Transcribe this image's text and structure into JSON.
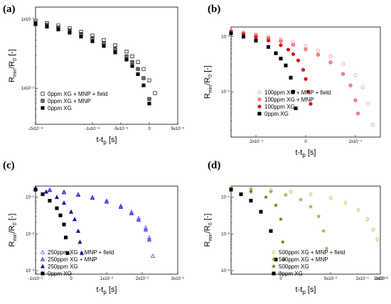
{
  "chart_data": [
    {
      "type": "scatter",
      "panel_label": "(a)",
      "xlabel": "t-t",
      "xlabel_sub": "p",
      "xlabel_unit": "[s]",
      "ylabel": "R",
      "ylabel_sub1": "min",
      "ylabel_mid": "/R",
      "ylabel_sub2": "0",
      "ylabel_unit": "[-]",
      "xlim": [
        -0.0002,
        5e-05
      ],
      "ylim": [
        0.003,
        0.15
      ],
      "yscale": "log",
      "xticks": [
        -0.0002,
        -0.0001,
        -5e-05,
        0,
        5e-05
      ],
      "xtick_labels": [
        "-2x10⁻⁴",
        "-1x10⁻⁴",
        "-5x10⁻⁵",
        "0",
        "5x10⁻⁵"
      ],
      "yticks": [
        0.1,
        0.01
      ],
      "ytick_labels": [
        "1x10⁻¹",
        "1x10⁻²"
      ],
      "legend_position": "lower-left",
      "series": [
        {
          "name": "0ppm XG + MNP + field",
          "color": "#000000",
          "marker": "square-open",
          "x": [
            -0.0002,
            -0.00018,
            -0.00016,
            -0.00014,
            -0.00012,
            -0.0001,
            -8e-05,
            -6e-05,
            -4e-05,
            -3e-05,
            -2e-05,
            -1e-05,
            0,
            1e-05
          ],
          "y": [
            0.095,
            0.088,
            0.081,
            0.074,
            0.066,
            0.058,
            0.05,
            0.042,
            0.034,
            0.029,
            0.024,
            0.019,
            0.013,
            0.0085
          ]
        },
        {
          "name": "0ppm XG + MNP",
          "color": "#000000",
          "marker": "square-half",
          "x": [
            -0.0002,
            -0.00018,
            -0.00016,
            -0.00014,
            -0.00012,
            -0.0001,
            -8e-05,
            -6e-05,
            -4e-05,
            -3e-05,
            -2e-05,
            -1e-05,
            0
          ],
          "y": [
            0.09,
            0.083,
            0.076,
            0.069,
            0.061,
            0.053,
            0.045,
            0.037,
            0.029,
            0.024,
            0.019,
            0.014,
            0.007
          ]
        },
        {
          "name": "0ppm XG",
          "color": "#000000",
          "marker": "square-filled",
          "x": [
            -0.0002,
            -0.00018,
            -0.00016,
            -0.00014,
            -0.00012,
            -0.0001,
            -8e-05,
            -6e-05,
            -4e-05,
            -3e-05,
            -2e-05,
            -1e-05,
            0
          ],
          "y": [
            0.085,
            0.078,
            0.071,
            0.064,
            0.056,
            0.048,
            0.041,
            0.033,
            0.026,
            0.021,
            0.016,
            0.011,
            0.006
          ]
        }
      ]
    },
    {
      "type": "scatter",
      "panel_label": "(b)",
      "xlabel": "t-t",
      "xlabel_sub": "p",
      "xlabel_unit": "[s]",
      "ylabel": "R",
      "ylabel_sub1": "min",
      "ylabel_mid": "/R",
      "ylabel_sub2": "0",
      "ylabel_unit": "[-]",
      "xlim": [
        -0.0003,
        0.0003
      ],
      "ylim": [
        0.0015,
        0.15
      ],
      "yscale": "log",
      "xticks": [
        -0.0002,
        0,
        0.0002
      ],
      "xtick_labels": [
        "-2x10⁻⁴",
        "0",
        "2x10⁻⁴"
      ],
      "yticks": [
        0.1,
        0.01
      ],
      "ytick_labels": [
        "10⁻¹",
        "10⁻²"
      ],
      "legend_position": "lower-right",
      "series": [
        {
          "name": "100ppm XG + MNP + field",
          "color": "#f08080",
          "marker": "circle-open",
          "x": [
            -0.0003,
            -0.00025,
            -0.0002,
            -0.00015,
            -0.0001,
            -5e-05,
            0,
            5e-05,
            0.0001,
            0.00015,
            0.0002,
            0.00023,
            0.00025,
            0.00027
          ],
          "y": [
            0.13,
            0.12,
            0.11,
            0.1,
            0.09,
            0.08,
            0.068,
            0.056,
            0.044,
            0.032,
            0.02,
            0.012,
            0.006,
            0.0025
          ]
        },
        {
          "name": "100ppm XG + MNP",
          "color": "#e83030",
          "marker": "circle-half",
          "x": [
            -0.0003,
            -0.00025,
            -0.0002,
            -0.00015,
            -0.0001,
            -5e-05,
            0,
            5e-05,
            0.0001,
            0.00015,
            0.00018,
            0.0002,
            0.00021
          ],
          "y": [
            0.125,
            0.115,
            0.105,
            0.094,
            0.083,
            0.071,
            0.059,
            0.047,
            0.034,
            0.021,
            0.013,
            0.007,
            0.004
          ]
        },
        {
          "name": "100ppm XG",
          "color": "#e00000",
          "marker": "circle-filled",
          "x": [
            -0.0003,
            -0.00025,
            -0.0002,
            -0.00015,
            -0.0001,
            -7e-05,
            -5e-05,
            -3e-05,
            -1e-05,
            0,
            1e-05,
            2e-05
          ],
          "y": [
            0.12,
            0.11,
            0.098,
            0.085,
            0.07,
            0.058,
            0.048,
            0.037,
            0.025,
            0.017,
            0.01,
            0.006
          ]
        },
        {
          "name": "0ppm XG",
          "color": "#000000",
          "marker": "square-filled",
          "x": [
            -0.0003,
            -0.00025,
            -0.0002,
            -0.00015,
            -0.00012,
            -0.0001,
            -8e-05,
            -6e-05,
            -5e-05,
            -4e-05
          ],
          "y": [
            0.115,
            0.1,
            0.085,
            0.065,
            0.05,
            0.04,
            0.03,
            0.018,
            0.01,
            0.005
          ]
        }
      ]
    },
    {
      "type": "scatter",
      "panel_label": "(c)",
      "xlabel": "t-t",
      "xlabel_sub": "p",
      "xlabel_unit": "[s]",
      "ylabel": "R",
      "ylabel_sub1": "min",
      "ylabel_mid": "/R",
      "ylabel_sub2": "0",
      "ylabel_unit": "[-]",
      "xlim": [
        -0.01,
        0.03
      ],
      "ylim": [
        0.0008,
        0.2
      ],
      "yscale": "log",
      "xticks": [
        -0.01,
        0,
        0.01,
        0.02,
        0.03
      ],
      "xtick_labels": [
        "-1x10⁻²",
        "0",
        "1x10⁻²",
        "2x10⁻²",
        "3x10⁻²"
      ],
      "yticks": [
        0.1,
        0.01,
        0.001
      ],
      "ytick_labels": [
        "10⁻¹",
        "10⁻²",
        "10⁻³"
      ],
      "legend_position": "lower-left",
      "series": [
        {
          "name": "250ppm XG + MNP + field",
          "color": "#4040ff",
          "marker": "triangle-open",
          "x": [
            -0.01,
            -0.006,
            -0.002,
            0.002,
            0.006,
            0.01,
            0.014,
            0.017,
            0.019,
            0.021,
            0.022,
            0.023
          ],
          "y": [
            0.18,
            0.16,
            0.14,
            0.12,
            0.1,
            0.08,
            0.058,
            0.04,
            0.027,
            0.015,
            0.008,
            0.0025
          ]
        },
        {
          "name": "250ppm XG + MNP",
          "color": "#2020d0",
          "marker": "triangle-half",
          "x": [
            -0.01,
            -0.006,
            -0.002,
            0.002,
            0.006,
            0.01,
            0.014,
            0.017,
            0.019,
            0.021,
            0.022
          ],
          "y": [
            0.175,
            0.155,
            0.135,
            0.115,
            0.095,
            0.075,
            0.054,
            0.036,
            0.024,
            0.013,
            0.007
          ]
        },
        {
          "name": "250ppm XG",
          "color": "#1010a0",
          "marker": "triangle-filled",
          "x": [
            -0.01,
            -0.007,
            -0.004,
            -0.002,
            0,
            0.001,
            0.002,
            0.0025,
            0.003
          ],
          "y": [
            0.17,
            0.14,
            0.1,
            0.07,
            0.04,
            0.025,
            0.012,
            0.006,
            0.003
          ]
        },
        {
          "name": "0ppm XG",
          "color": "#000000",
          "marker": "square-filled",
          "x": [
            -0.01,
            -0.008,
            -0.006,
            -0.004,
            -0.003,
            -0.002,
            -0.0015,
            -0.001
          ],
          "y": [
            0.16,
            0.12,
            0.08,
            0.05,
            0.032,
            0.018,
            0.008,
            0.003
          ]
        }
      ]
    },
    {
      "type": "scatter",
      "panel_label": "(d)",
      "xlabel": "t-t",
      "xlabel_sub": "p",
      "xlabel_unit": "[s]",
      "ylabel": "R",
      "ylabel_sub1": "min",
      "ylabel_mid": "/R",
      "ylabel_sub2": "0",
      "ylabel_unit": "[-]",
      "xlim": [
        -0.05,
        0.1
      ],
      "ylim": [
        0.0008,
        0.2
      ],
      "yscale": "log",
      "xticks": [
        0,
        0.05,
        0.1
      ],
      "xtick_labels": [
        "0",
        "5x10⁻²",
        "1x10⁻¹"
      ],
      "extra_xtick_labels": [
        "2x10⁻¹",
        "2x10⁻¹"
      ],
      "yticks": [
        0.1,
        0.01,
        0.001
      ],
      "ytick_labels": [
        "10⁻¹",
        "10⁻²",
        "10⁻³"
      ],
      "legend_position": "lower-right",
      "series": [
        {
          "name": "500ppm XG + MNP + field",
          "color": "#b8b830",
          "marker": "diamond-open",
          "x": [
            -0.05,
            -0.03,
            -0.01,
            0.01,
            0.03,
            0.05,
            0.065,
            0.078,
            0.087,
            0.093,
            0.097
          ],
          "y": [
            0.18,
            0.17,
            0.155,
            0.14,
            0.12,
            0.095,
            0.07,
            0.045,
            0.025,
            0.013,
            0.007
          ]
        },
        {
          "name": "500ppm XG + MNP",
          "color": "#8a8a10",
          "marker": "star",
          "x": [
            -0.05,
            -0.03,
            -0.01,
            0.005,
            0.02,
            0.03,
            0.038,
            0.043,
            0.046
          ],
          "y": [
            0.175,
            0.16,
            0.14,
            0.115,
            0.085,
            0.055,
            0.03,
            0.012,
            0.004
          ]
        },
        {
          "name": "500ppm XG",
          "color": "#6b6b00",
          "marker": "star-filled",
          "x": [
            -0.05,
            -0.03,
            -0.015,
            -0.005,
            0,
            0.002,
            0.003
          ],
          "y": [
            0.17,
            0.14,
            0.1,
            0.06,
            0.025,
            0.006,
            0.002
          ]
        },
        {
          "name": "0ppm XG",
          "color": "#000000",
          "marker": "square-filled",
          "x": [
            -0.05,
            -0.04,
            -0.03,
            -0.02,
            -0.01,
            -0.005
          ],
          "y": [
            0.16,
            0.12,
            0.08,
            0.04,
            0.012,
            0.002
          ]
        }
      ]
    }
  ]
}
